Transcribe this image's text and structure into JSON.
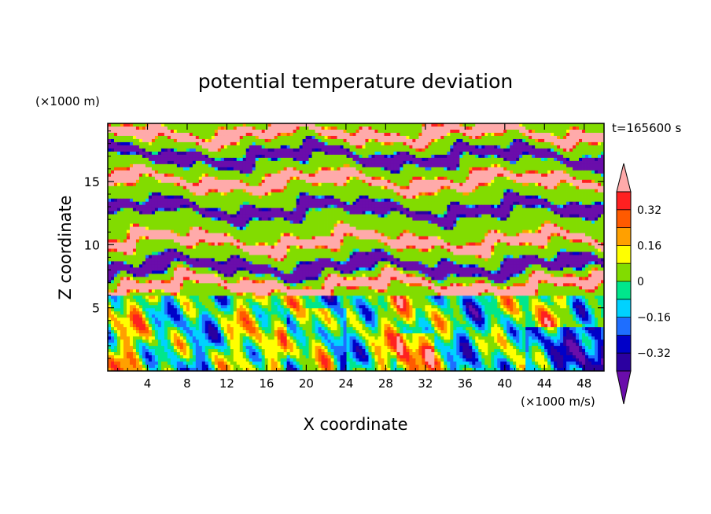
{
  "chart_data": {
    "type": "heatmap",
    "title": "potential temperature deviation",
    "xlabel": "X coordinate",
    "ylabel": "Z coordinate",
    "x_unit": "(×1000 m/s)",
    "y_unit": "(×1000 m)",
    "time_label": "t=165600 s",
    "xlim": [
      0,
      50
    ],
    "ylim": [
      0,
      19.6
    ],
    "x_ticks": [
      4,
      8,
      12,
      16,
      20,
      24,
      28,
      32,
      36,
      40,
      44,
      48
    ],
    "y_ticks": [
      5,
      10,
      15
    ],
    "colorbar": {
      "levels": [
        -0.4,
        -0.32,
        -0.24,
        -0.16,
        -0.08,
        0,
        0.08,
        0.16,
        0.24,
        0.32,
        0.4
      ],
      "labels": [
        "0.32",
        "0.16",
        "0",
        "−0.16",
        "−0.32"
      ],
      "label_values": [
        0.32,
        0.16,
        0,
        -0.16,
        -0.32
      ],
      "colors": [
        "#6a0dab",
        "#2b00a0",
        "#0000c8",
        "#1e6eff",
        "#00d2ff",
        "#00e68c",
        "#82dc00",
        "#ffff00",
        "#ffa000",
        "#ff5a00",
        "#ff2020",
        "#ffaaaa"
      ]
    },
    "bands": [
      {
        "z_range": [
          0,
          6
        ],
        "description_value": "mixed",
        "dominant": "cyan-green-yellow"
      },
      {
        "z_range": [
          6,
          7.5
        ],
        "description_value": 0.4,
        "dominant": "pink"
      },
      {
        "z_range": [
          7.5,
          9
        ],
        "description_value": -0.4,
        "dominant": "purple"
      },
      {
        "z_range": [
          9,
          11.5
        ],
        "description_value": 0.4,
        "dominant": "pink"
      },
      {
        "z_range": [
          11.5,
          14
        ],
        "description_value": -0.4,
        "dominant": "purple"
      },
      {
        "z_range": [
          14,
          16
        ],
        "description_value": 0.4,
        "dominant": "pink"
      },
      {
        "z_range": [
          16,
          18
        ],
        "description_value": -0.4,
        "dominant": "purple"
      },
      {
        "z_range": [
          18,
          19.6
        ],
        "description_value": 0.4,
        "dominant": "pink"
      }
    ]
  }
}
